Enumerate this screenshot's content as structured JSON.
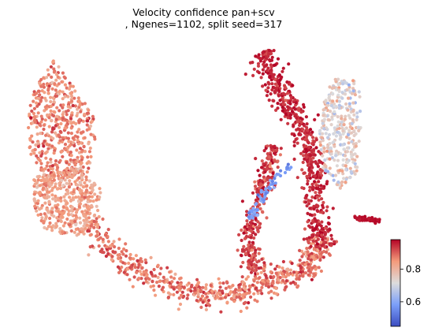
{
  "chart_data": {
    "type": "scatter",
    "title_line1": "Velocity confidence pan+scv",
    "title_line2": ", Ngenes=1102, split seed=317",
    "xlabel": "",
    "ylabel": "",
    "axes_visible": false,
    "colormap": "coolwarm",
    "colorbar": {
      "range": [
        0.45,
        0.98
      ],
      "ticks": [
        0.6,
        0.8
      ],
      "tick_labels": [
        "0.6",
        "0.8"
      ],
      "placement": "right"
    },
    "point_count_approx": 3000,
    "regions": [
      {
        "name": "left-lobe-top",
        "value_mean": 0.86
      },
      {
        "name": "left-lobe-lower",
        "value_mean": 0.83
      },
      {
        "name": "bottom-arc",
        "value_mean": 0.88
      },
      {
        "name": "right-vertical-arm",
        "value_mean": 0.95
      },
      {
        "name": "right-lower-branch",
        "value_mean": 0.93
      },
      {
        "name": "blue-streak",
        "value_mean": 0.58
      },
      {
        "name": "upper-right-cluster",
        "value_mean": 0.73
      },
      {
        "name": "right-tail",
        "value_mean": 0.97
      }
    ]
  }
}
